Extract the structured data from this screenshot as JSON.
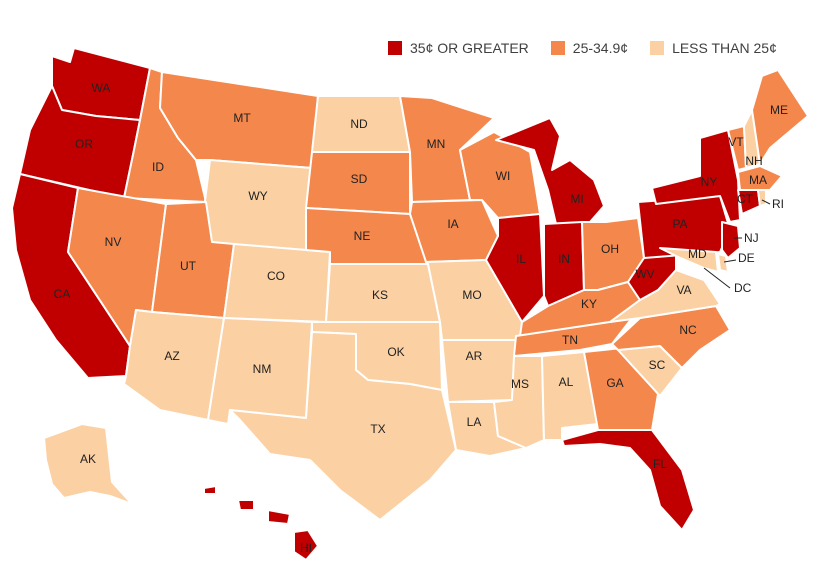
{
  "legend": [
    {
      "label": "35¢ OR GREATER",
      "color": "#c00000"
    },
    {
      "label": "25-34.9¢",
      "color": "#f4874b"
    },
    {
      "label": "LESS THAN 25¢",
      "color": "#fbd0a3"
    }
  ],
  "states": {
    "WA": {
      "label": "WA",
      "tier": 0
    },
    "OR": {
      "label": "OR",
      "tier": 0
    },
    "CA": {
      "label": "CA",
      "tier": 0
    },
    "ID": {
      "label": "ID",
      "tier": 1
    },
    "NV": {
      "label": "NV",
      "tier": 1
    },
    "MT": {
      "label": "MT",
      "tier": 1
    },
    "WY": {
      "label": "WY",
      "tier": 2
    },
    "UT": {
      "label": "UT",
      "tier": 1
    },
    "AZ": {
      "label": "AZ",
      "tier": 2
    },
    "CO": {
      "label": "CO",
      "tier": 2
    },
    "NM": {
      "label": "NM",
      "tier": 2
    },
    "ND": {
      "label": "ND",
      "tier": 2
    },
    "SD": {
      "label": "SD",
      "tier": 1
    },
    "NE": {
      "label": "NE",
      "tier": 1
    },
    "KS": {
      "label": "KS",
      "tier": 2
    },
    "OK": {
      "label": "OK",
      "tier": 2
    },
    "TX": {
      "label": "TX",
      "tier": 2
    },
    "MN": {
      "label": "MN",
      "tier": 1
    },
    "IA": {
      "label": "IA",
      "tier": 1
    },
    "MO": {
      "label": "MO",
      "tier": 2
    },
    "AR": {
      "label": "AR",
      "tier": 2
    },
    "LA": {
      "label": "LA",
      "tier": 2
    },
    "WI": {
      "label": "WI",
      "tier": 1
    },
    "IL": {
      "label": "IL",
      "tier": 0
    },
    "MI": {
      "label": "MI",
      "tier": 0
    },
    "IN": {
      "label": "IN",
      "tier": 0
    },
    "OH": {
      "label": "OH",
      "tier": 1
    },
    "KY": {
      "label": "KY",
      "tier": 1
    },
    "TN": {
      "label": "TN",
      "tier": 1
    },
    "MS": {
      "label": "MS",
      "tier": 2
    },
    "AL": {
      "label": "AL",
      "tier": 2
    },
    "GA": {
      "label": "GA",
      "tier": 1
    },
    "FL": {
      "label": "FL",
      "tier": 0
    },
    "SC": {
      "label": "SC",
      "tier": 2
    },
    "NC": {
      "label": "NC",
      "tier": 1
    },
    "VA": {
      "label": "VA",
      "tier": 2
    },
    "WV": {
      "label": "WV",
      "tier": 0
    },
    "PA": {
      "label": "PA",
      "tier": 0
    },
    "NY": {
      "label": "NY",
      "tier": 0
    },
    "VT": {
      "label": "VT",
      "tier": 1
    },
    "NH": {
      "label": "NH",
      "tier": 2
    },
    "ME": {
      "label": "ME",
      "tier": 1
    },
    "MA": {
      "label": "MA",
      "tier": 1
    },
    "CT": {
      "label": "CT",
      "tier": 0
    },
    "RI": {
      "label": "RI",
      "tier": 2
    },
    "NJ": {
      "label": "NJ",
      "tier": 0
    },
    "DE": {
      "label": "DE",
      "tier": 2
    },
    "MD": {
      "label": "MD",
      "tier": 2
    },
    "DC": {
      "label": "DC",
      "tier": 2
    },
    "AK": {
      "label": "AK",
      "tier": 2
    },
    "HI": {
      "label": "HI",
      "tier": 0
    }
  }
}
